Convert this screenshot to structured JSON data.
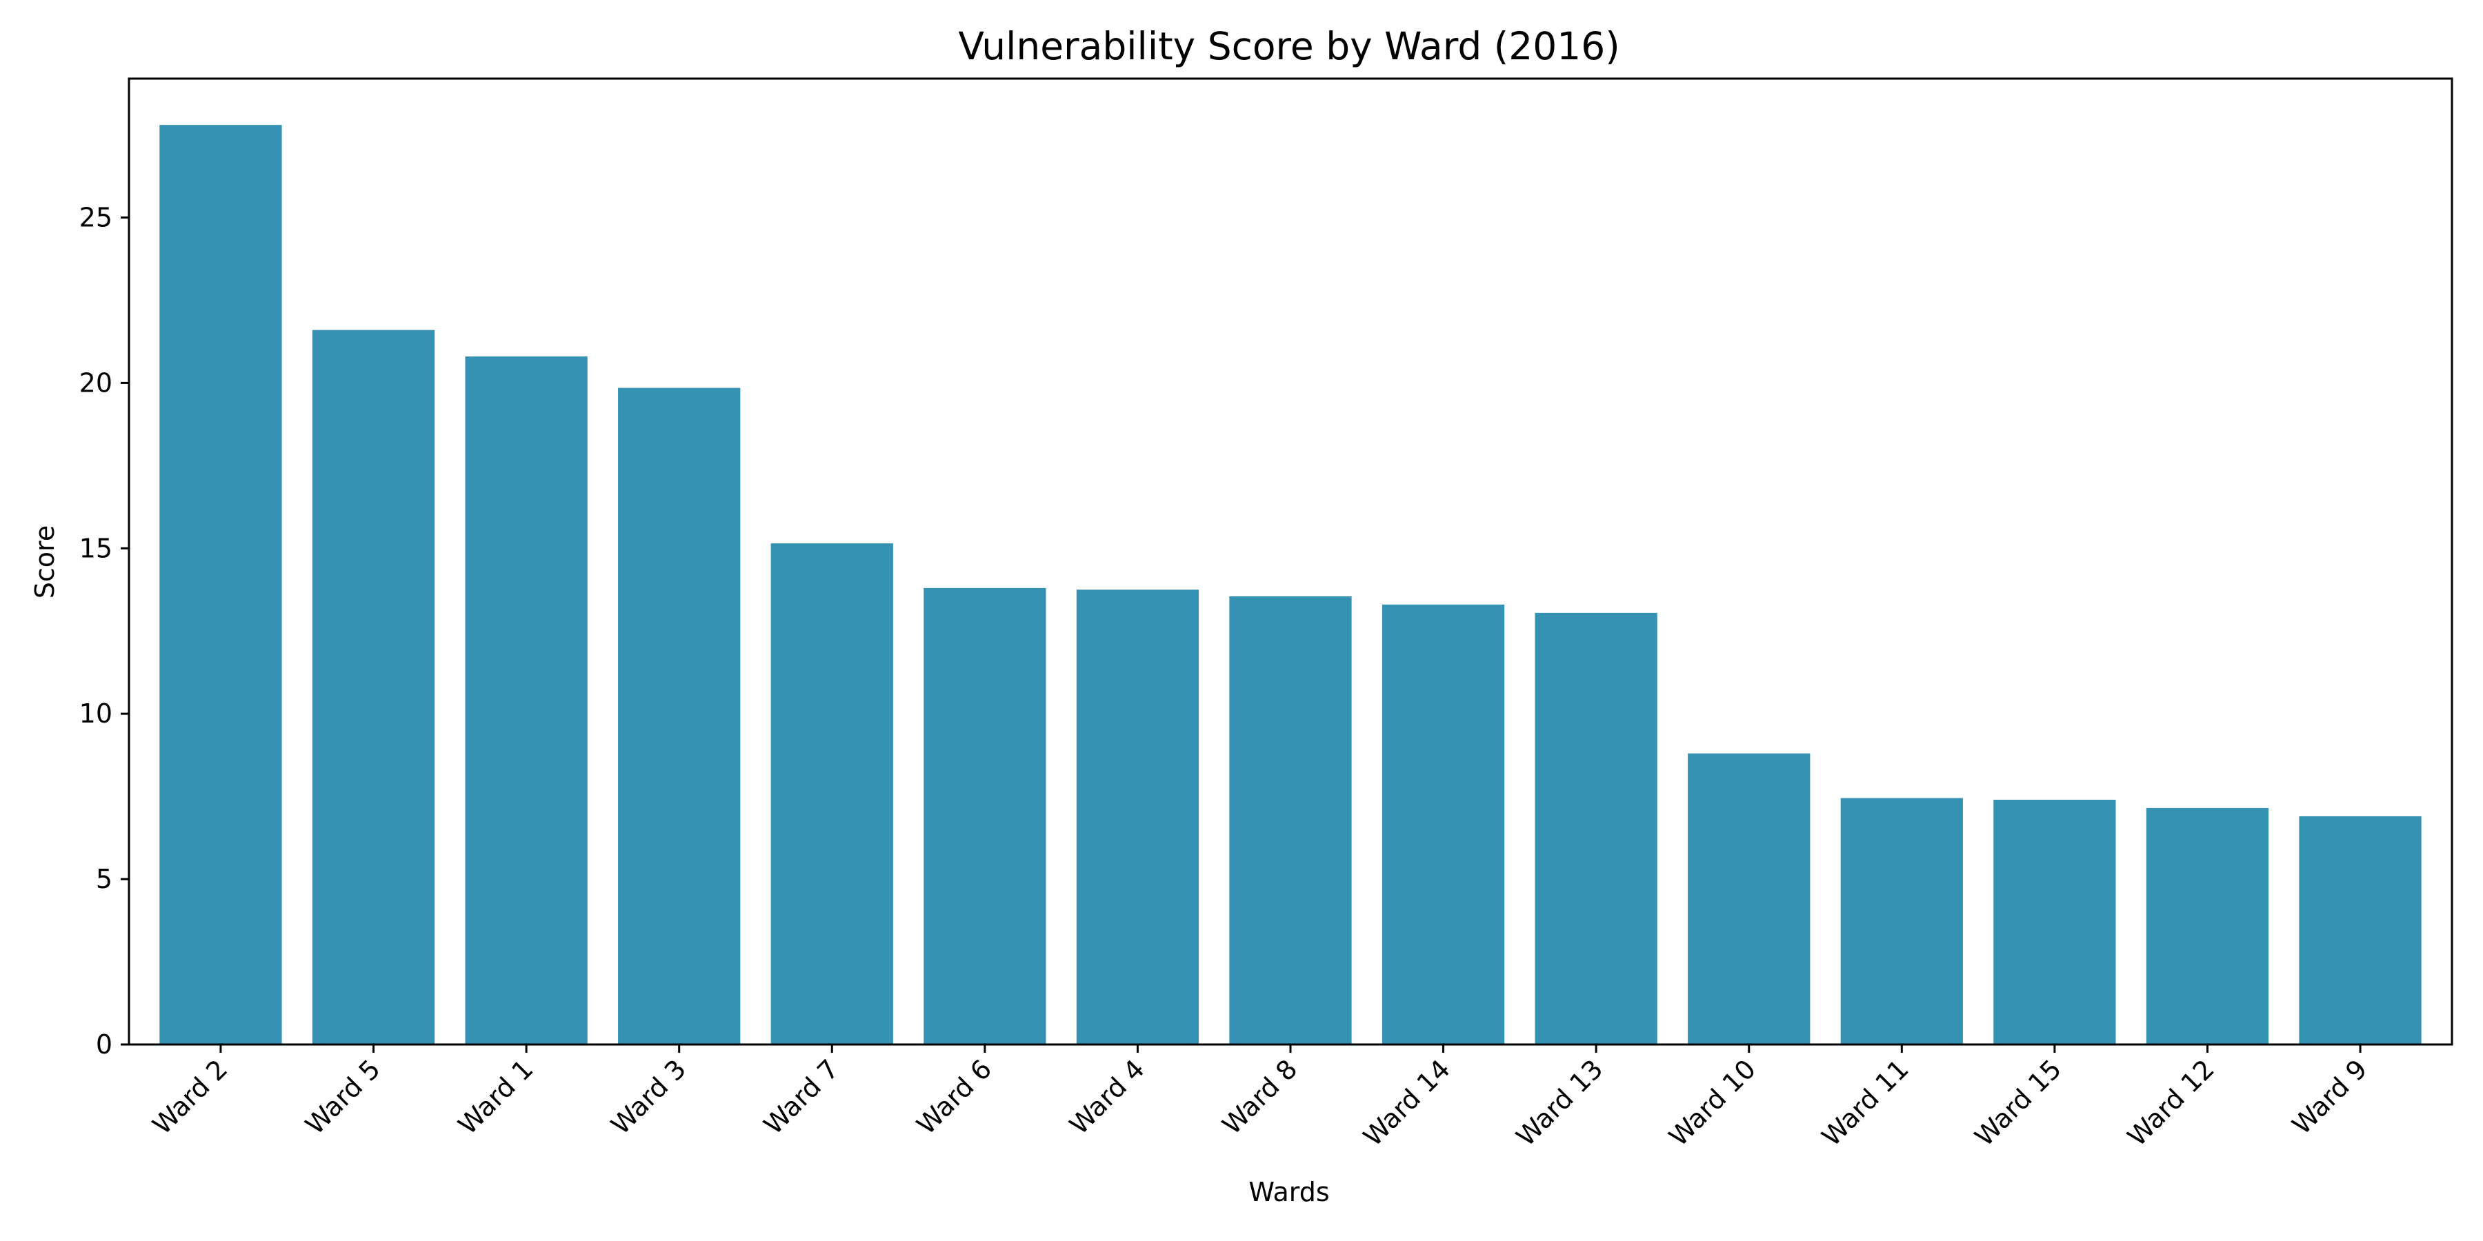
{
  "chart_data": {
    "type": "bar",
    "title": "Vulnerability Score by Ward (2016)",
    "xlabel": "Wards",
    "ylabel": "Score",
    "categories": [
      "Ward 2",
      "Ward 5",
      "Ward 1",
      "Ward 3",
      "Ward 7",
      "Ward 6",
      "Ward 4",
      "Ward 8",
      "Ward 14",
      "Ward 13",
      "Ward 10",
      "Ward 11",
      "Ward 15",
      "Ward 12",
      "Ward 9"
    ],
    "values": [
      27.8,
      21.6,
      20.8,
      19.85,
      15.15,
      13.8,
      13.75,
      13.55,
      13.3,
      13.05,
      8.8,
      7.45,
      7.4,
      7.15,
      6.9
    ],
    "yticks": [
      0,
      5,
      10,
      15,
      20,
      25
    ],
    "ylim": [
      0,
      29.2
    ],
    "grid": false,
    "bar_color": "#3692b3"
  }
}
